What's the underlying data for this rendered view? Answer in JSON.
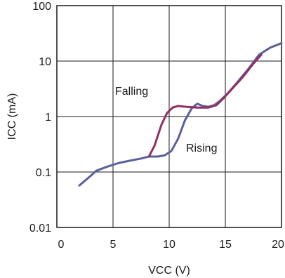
{
  "chart_data": {
    "type": "line",
    "title": "",
    "xlabel": "VCC (V)",
    "ylabel": "ICC (mA)",
    "xlim": [
      0,
      20
    ],
    "ylim": [
      0.01,
      100
    ],
    "yscale": "log",
    "grid": true,
    "x_ticks": [
      {
        "value": 0,
        "label": "0"
      },
      {
        "value": 5,
        "label": "5"
      },
      {
        "value": 10,
        "label": "10"
      },
      {
        "value": 15,
        "label": "15"
      },
      {
        "value": 20,
        "label": "20"
      }
    ],
    "y_ticks": [
      {
        "value": 0.01,
        "label": "0.01"
      },
      {
        "value": 0.1,
        "label": "0.1"
      },
      {
        "value": 1,
        "label": "1"
      },
      {
        "value": 10,
        "label": "10"
      },
      {
        "value": 100,
        "label": "100"
      }
    ],
    "series": [
      {
        "name": "Rising",
        "color": "#5b5f9c",
        "points": [
          [
            2,
            0.057
          ],
          [
            3,
            0.085
          ],
          [
            3.5,
            0.105
          ],
          [
            4.5,
            0.125
          ],
          [
            5.5,
            0.145
          ],
          [
            6.5,
            0.16
          ],
          [
            7.5,
            0.175
          ],
          [
            8.2,
            0.19
          ],
          [
            9,
            0.19
          ],
          [
            9.6,
            0.2
          ],
          [
            10.2,
            0.24
          ],
          [
            10.8,
            0.4
          ],
          [
            11.4,
            0.85
          ],
          [
            12,
            1.4
          ],
          [
            12.5,
            1.7
          ],
          [
            13,
            1.55
          ],
          [
            13.5,
            1.5
          ],
          [
            14,
            1.6
          ],
          [
            14.5,
            1.9
          ],
          [
            15.2,
            2.6
          ],
          [
            16,
            4
          ],
          [
            17,
            7
          ],
          [
            18,
            13
          ],
          [
            19,
            17.5
          ],
          [
            20,
            21
          ]
        ]
      },
      {
        "name": "Falling",
        "color": "#8f2f63",
        "points": [
          [
            8.2,
            0.19
          ],
          [
            8.7,
            0.3
          ],
          [
            9.3,
            0.7
          ],
          [
            9.8,
            1.15
          ],
          [
            10.3,
            1.45
          ],
          [
            10.8,
            1.55
          ],
          [
            11.5,
            1.5
          ],
          [
            12.5,
            1.45
          ],
          [
            13.5,
            1.45
          ],
          [
            14.2,
            1.6
          ],
          [
            14.8,
            2.1
          ],
          [
            15.5,
            3
          ],
          [
            16.5,
            5
          ],
          [
            17.5,
            9
          ],
          [
            18.2,
            13
          ]
        ]
      }
    ],
    "annotations": [
      {
        "text": "Falling",
        "series": "Falling"
      },
      {
        "text": "Rising",
        "series": "Rising"
      }
    ]
  }
}
